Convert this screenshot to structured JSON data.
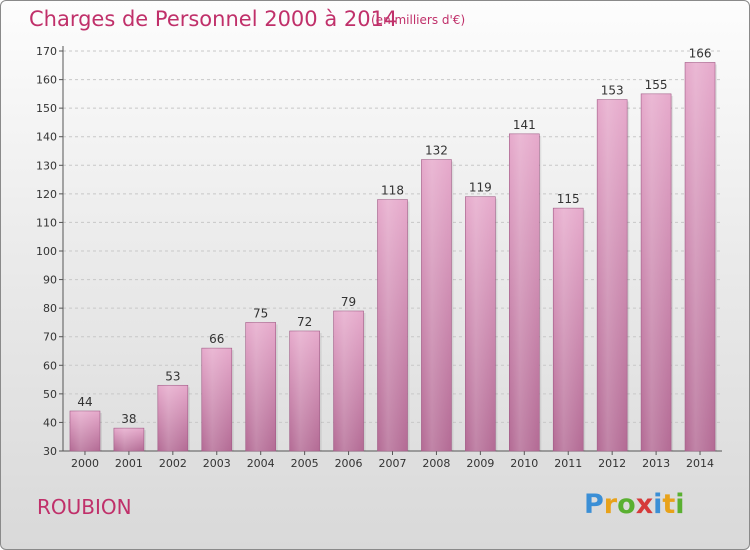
{
  "header": {
    "title": "Charges de Personnel 2000 à 2014",
    "subtitle": "(en milliers d'€)"
  },
  "footer": {
    "commune": "ROUBION",
    "logo_letters": [
      "P",
      "r",
      "o",
      "x",
      "i",
      "t",
      "i"
    ]
  },
  "colors": {
    "title": "#c0306a",
    "bar_top": "#e6a9cb",
    "bar_bottom": "#b36a94"
  },
  "chart_data": {
    "type": "bar",
    "title": "Charges de Personnel 2000 à 2014",
    "subtitle": "(en milliers d'€)",
    "xlabel": "",
    "ylabel": "",
    "categories": [
      "2000",
      "2001",
      "2002",
      "2003",
      "2004",
      "2005",
      "2006",
      "2007",
      "2008",
      "2009",
      "2010",
      "2011",
      "2012",
      "2013",
      "2014"
    ],
    "values": [
      44,
      38,
      53,
      66,
      75,
      72,
      79,
      118,
      132,
      119,
      141,
      115,
      153,
      155,
      166
    ],
    "ylim": [
      30,
      170
    ],
    "yticks": [
      30,
      40,
      50,
      60,
      70,
      80,
      90,
      100,
      110,
      120,
      130,
      140,
      150,
      160,
      170
    ],
    "grid": true,
    "data_labels": true
  }
}
